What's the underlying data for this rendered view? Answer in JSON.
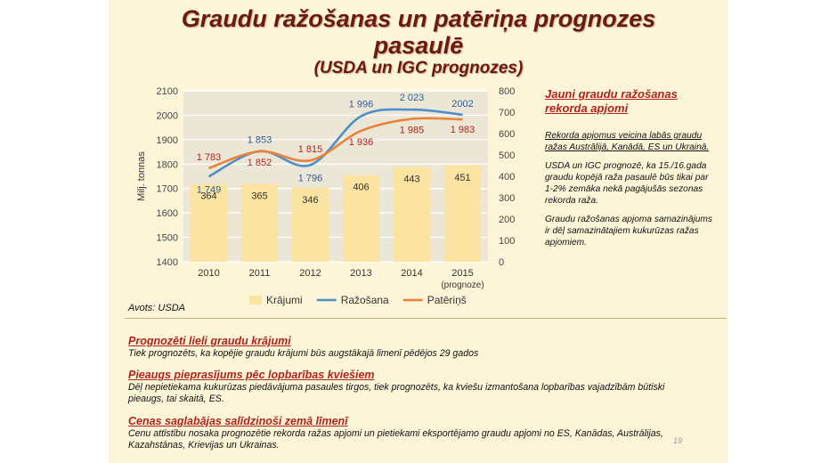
{
  "title": {
    "line1": "Graudu ražošanas un patēriņa prognozes",
    "line2": "pasaulē",
    "line3": "(USDA un IGC prognozes)"
  },
  "chart_data": {
    "type": "bar+line",
    "categories": [
      "2010",
      "2011",
      "2012",
      "2013",
      "2014",
      "2015"
    ],
    "category_sublabels": [
      "",
      "",
      "",
      "",
      "",
      "(prognoze)"
    ],
    "ylabel_left": "Milj. tonnas",
    "ylim_left": [
      1400,
      2100
    ],
    "yticks_left": [
      1400,
      1500,
      1600,
      1700,
      1800,
      1900,
      2000,
      2100
    ],
    "ylim_right": [
      0,
      800
    ],
    "yticks_right": [
      0,
      100,
      200,
      300,
      400,
      500,
      600,
      700,
      800
    ],
    "grid": true,
    "legend_position": "bottom",
    "series": [
      {
        "name": "Krājumi",
        "kind": "bar",
        "axis": "right",
        "color": "#fbe3a2",
        "values": [
          364,
          365,
          346,
          406,
          443,
          451
        ],
        "labels": [
          "364",
          "365",
          "346",
          "406",
          "443",
          "451"
        ]
      },
      {
        "name": "Ražošana",
        "kind": "line",
        "axis": "left",
        "color": "#4e8ec9",
        "values": [
          1749,
          1853,
          1796,
          1996,
          2023,
          2002
        ],
        "labels": [
          "1 749",
          "1 853",
          "1 796",
          "1 996",
          "2 023",
          "2002"
        ],
        "label_color": "#2f5d93"
      },
      {
        "name": "Patēriņš",
        "kind": "line",
        "axis": "left",
        "color": "#e8843a",
        "values": [
          1783,
          1852,
          1815,
          1936,
          1985,
          1983
        ],
        "labels": [
          "1 783",
          "1 852",
          "1 815",
          "1 936",
          "1 985",
          "1 983"
        ],
        "label_color": "#b3221a"
      }
    ]
  },
  "source": "Avots: USDA",
  "right_panel": {
    "heading": "Jauni graudu ražošanas rekorda apjomi",
    "p1": "Rekorda apjomus veicina labās graudu ražas Austrālijā, Kanādā, ES un Ukrainā.",
    "p2": "USDA un IGC prognozē, ka 15./16.gada graudu kopējā raža pasaulē būs tikai par 1-2% zemāka nekā pagājušās sezonas rekorda raža.",
    "p3": "Graudu ražošanas apjoma samazinājums ir dēļ samazinātajiem kukurūzas ražas apjomiem."
  },
  "sections": [
    {
      "heading": "Prognozēti lieli graudu krājumi",
      "body": "Tiek prognozēts, ka kopējie graudu krājumi būs augstākajā līmenī pēdējos 29 gados"
    },
    {
      "heading": "Pieaugs pieprasījums pēc lopbarības kviešiem",
      "body": "Dēļ nepietiekama kukurūzas piedāvājuma pasaules tirgos, tiek prognozēts, ka kviešu izmantošana lopbarības vajadzībām būtiski pieaugs, tai skaitā, ES."
    },
    {
      "heading": "Cenas saglabājas salīdzinoši zemā līmenī",
      "body": "Cenu attīstību nosaka prognozētie rekorda ražas apjomi un pietiekami eksportējamo graudu apjomi no ES, Kanādas, Austrālijas, Kazahstānas, Krievijas un Ukrainas."
    }
  ],
  "page_number": "19"
}
